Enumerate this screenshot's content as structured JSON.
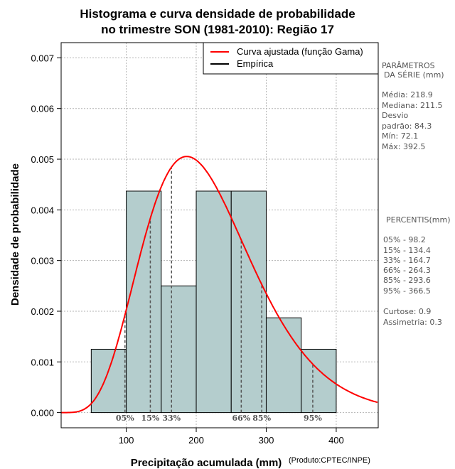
{
  "chart_data": {
    "type": "bar",
    "title_lines": [
      "Histograma e curva densidade de probabilidade",
      "no trimestre SON (1981-2010): Região 17"
    ],
    "xlabel": "Precipitação acumulada (mm)",
    "ylabel": "Densidade de probabilidade",
    "credit": "(Produto:CPTEC/INPE)",
    "xlim": [
      7,
      460
    ],
    "ylim": [
      -0.0003,
      0.0073
    ],
    "x_ticks": [
      100,
      200,
      300,
      400
    ],
    "y_ticks": [
      0.0,
      0.001,
      0.002,
      0.003,
      0.004,
      0.005,
      0.006,
      0.007
    ],
    "y_tick_labels": [
      "0.000",
      "0.001",
      "0.002",
      "0.003",
      "0.004",
      "0.005",
      "0.006",
      "0.007"
    ],
    "bins": [
      {
        "from": 50,
        "to": 100,
        "density": 0.00125
      },
      {
        "from": 100,
        "to": 150,
        "density": 0.00437
      },
      {
        "from": 150,
        "to": 200,
        "density": 0.0025
      },
      {
        "from": 200,
        "to": 250,
        "density": 0.00437
      },
      {
        "from": 250,
        "to": 300,
        "density": 0.00437
      },
      {
        "from": 300,
        "to": 350,
        "density": 0.00187
      },
      {
        "from": 350,
        "to": 400,
        "density": 0.00125
      }
    ],
    "gamma_fit": {
      "mean": 218.9,
      "sd": 84.3
    },
    "percentile_markers": [
      {
        "label": "05%",
        "value": 98.2
      },
      {
        "label": "15%",
        "value": 134.4
      },
      {
        "label": "33%",
        "value": 164.7
      },
      {
        "label": "66%",
        "value": 264.3
      },
      {
        "label": "85%",
        "value": 293.6
      },
      {
        "label": "95%",
        "value": 366.5
      }
    ],
    "legend": [
      {
        "label": "Curva ajustada (função Gama)",
        "color": "#ff0000"
      },
      {
        "label": "Empírica",
        "color": "#000000"
      }
    ],
    "colors": {
      "bar_fill": "#b4cdcd",
      "curve": "#ff0000",
      "grid": "#b3b3b3"
    }
  },
  "parameters": {
    "heading_line1": "PARÂMETROS",
    "heading_line2": "DA SÉRIE (mm)",
    "lines": [
      "Média:  218.9",
      "Mediana:  211.5",
      "Desvio",
      "padrão:  84.3",
      "Mín:  72.1",
      "Máx:  392.5"
    ]
  },
  "percentis": {
    "heading": "PERCENTIS(mm)",
    "lines": [
      "05% -   98.2",
      "15% -   134.4",
      "33% -   164.7",
      "66% -   264.3",
      "85% -   293.6",
      "95% -   366.5"
    ]
  },
  "shape": {
    "lines": [
      "Curtose:  0.9",
      "Assimetria:  0.3"
    ]
  }
}
